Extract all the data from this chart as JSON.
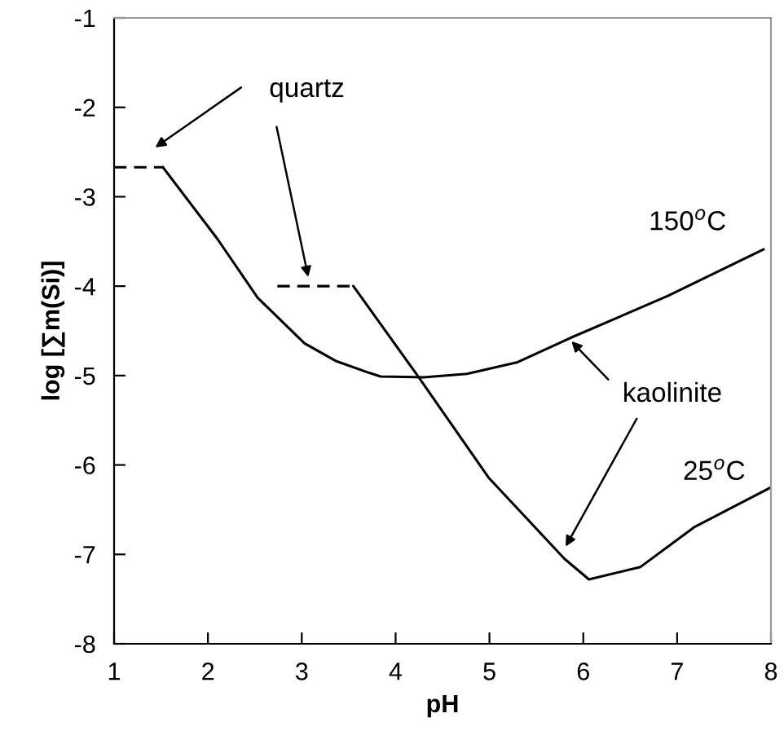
{
  "chart_data": {
    "type": "line",
    "xlabel": "pH",
    "ylabel": "log [∑m(Si)]",
    "xlim": [
      1,
      8
    ],
    "ylim": [
      -8,
      -1
    ],
    "xticks": [
      1,
      2,
      3,
      4,
      5,
      6,
      7,
      8
    ],
    "yticks": [
      -8,
      -7,
      -6,
      -5,
      -4,
      -3,
      -2,
      -1
    ],
    "grid": false,
    "legend": false,
    "marker": "none",
    "series": [
      {
        "name": "150$^{o}$C",
        "color": "#000000",
        "line_style": "solid",
        "x": [
          1.52,
          2.1,
          2.53,
          3.03,
          3.37,
          3.72,
          3.84,
          4.3,
          4.76,
          5.3,
          5.86,
          6.9,
          7.92
        ],
        "values": [
          -2.67,
          -3.47,
          -4.13,
          -4.64,
          -4.84,
          -4.97,
          -5.01,
          -5.02,
          -4.98,
          -4.85,
          -4.58,
          -4.11,
          -3.59
        ]
      },
      {
        "name": "25$^{o}$C",
        "color": "#000000",
        "line_style": "solid",
        "x": [
          3.55,
          4.24,
          4.99,
          5.8,
          6.06,
          6.61,
          7.19,
          8.0
        ],
        "values": [
          -4.0,
          -5.01,
          -6.14,
          -7.05,
          -7.28,
          -7.14,
          -6.69,
          -6.25
        ]
      },
      {
        "color": "#000000",
        "line_style": "dashed",
        "x": [
          1.0,
          1.52
        ],
        "values": [
          -2.67,
          -2.67
        ]
      },
      {
        "color": "#000000",
        "line_style": "dashed",
        "x": [
          2.74,
          3.55
        ],
        "values": [
          -4.0,
          -4.0
        ]
      }
    ],
    "annotations": [
      "quartz",
      {
        "text": "kaolinite",
        "x": 5.84,
        "y": -4.58
      }
    ]
  }
}
